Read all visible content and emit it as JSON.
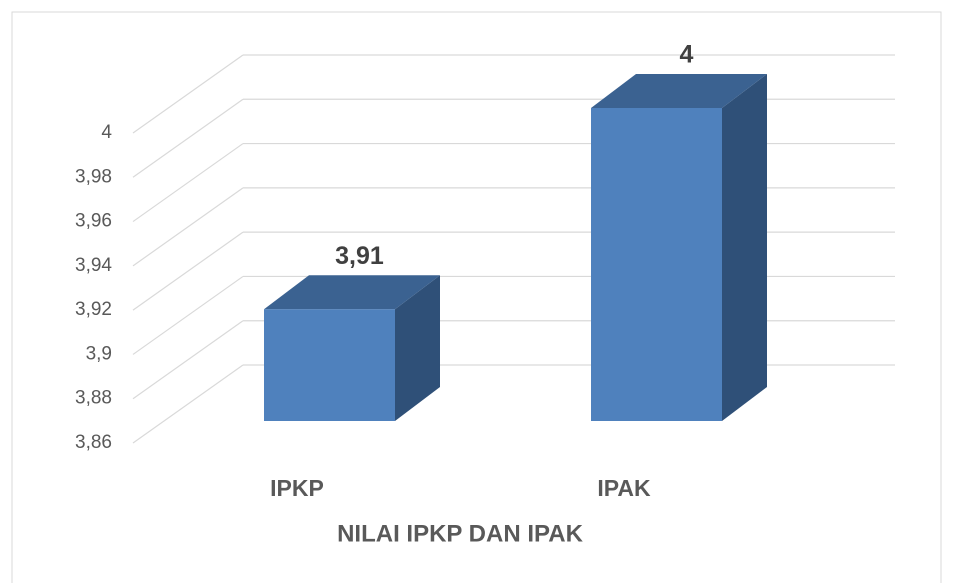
{
  "chart_data": {
    "type": "bar3d",
    "x_label": "NILAI IPKP DAN IPAK",
    "categories": [
      "IPKP",
      "IPAK"
    ],
    "values": [
      3.91,
      4
    ],
    "value_labels": [
      "3,91",
      "4"
    ],
    "color": "#4f81bd",
    "ylim": [
      3.86,
      4
    ],
    "yticks": [
      {
        "value": 3.86,
        "label": "3,86"
      },
      {
        "value": 3.88,
        "label": "3,88"
      },
      {
        "value": 3.9,
        "label": "3,9"
      },
      {
        "value": 3.92,
        "label": "3,92"
      },
      {
        "value": 3.94,
        "label": "3,94"
      },
      {
        "value": 3.96,
        "label": "3,96"
      },
      {
        "value": 3.98,
        "label": "3,98"
      },
      4
    ],
    "grid": true
  }
}
